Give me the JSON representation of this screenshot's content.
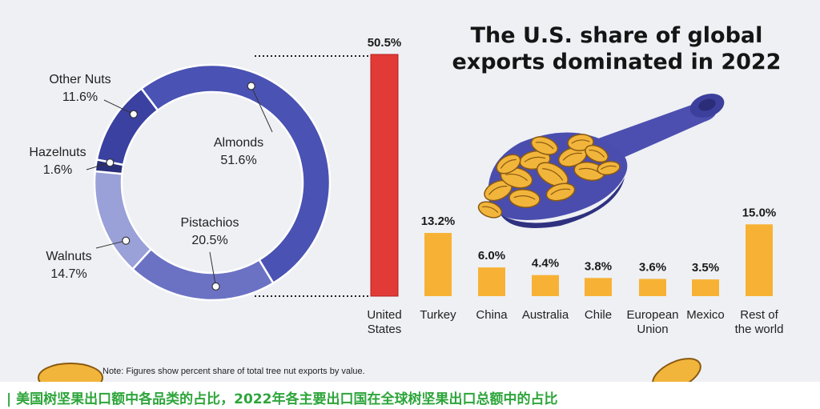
{
  "colors": {
    "background": "#eef0f4",
    "donut_almonds": "#4a52b3",
    "donut_pistachios": "#6b72c4",
    "donut_walnuts": "#9aa0d8",
    "donut_hazelnuts": "#2a2f7a",
    "donut_other_nuts": "#3a41a0",
    "us_bar": "#e23a36",
    "other_bar": "#f7b235",
    "caption_green": "#2ea53b"
  },
  "headline": {
    "line1": "The U.S. share of global",
    "line2": "exports dominated in 2022"
  },
  "note": "Note: Figures show percent share of total tree nut exports by value.",
  "caption": "| 美国树坚果出口额中各品类的占比，2022年各主要出口国在全球树坚果出口总额中的占比",
  "illustration": {
    "icon": "scoop-with-pecans-icon"
  },
  "chart_data": [
    {
      "type": "pie",
      "title": "",
      "categories": [
        "Almonds",
        "Pistachios",
        "Walnuts",
        "Hazelnuts",
        "Other Nuts"
      ],
      "values": [
        51.6,
        20.5,
        14.7,
        1.6,
        11.6
      ],
      "value_labels": [
        "51.6%",
        "20.5%",
        "14.7%",
        "1.6%",
        "11.6%"
      ],
      "unit": "%",
      "legend": "none (callout labels)"
    },
    {
      "type": "bar",
      "title": "",
      "categories": [
        "United States",
        "Turkey",
        "China",
        "Australia",
        "Chile",
        "European Union",
        "Mexico",
        "Rest of the world"
      ],
      "category_lines": [
        [
          "United",
          "States"
        ],
        [
          "Turkey"
        ],
        [
          "China"
        ],
        [
          "Australia"
        ],
        [
          "Chile"
        ],
        [
          "European",
          "Union"
        ],
        [
          "Mexico"
        ],
        [
          "Rest of",
          "the world"
        ]
      ],
      "values": [
        50.5,
        13.2,
        6.0,
        4.4,
        3.8,
        3.6,
        3.5,
        15.0
      ],
      "value_labels": [
        "50.5%",
        "13.2%",
        "6.0%",
        "4.4%",
        "3.8%",
        "3.6%",
        "3.5%",
        "15.0%"
      ],
      "xlabel": "",
      "ylabel": "",
      "ylim": [
        0,
        50.5
      ],
      "grid": false
    }
  ]
}
